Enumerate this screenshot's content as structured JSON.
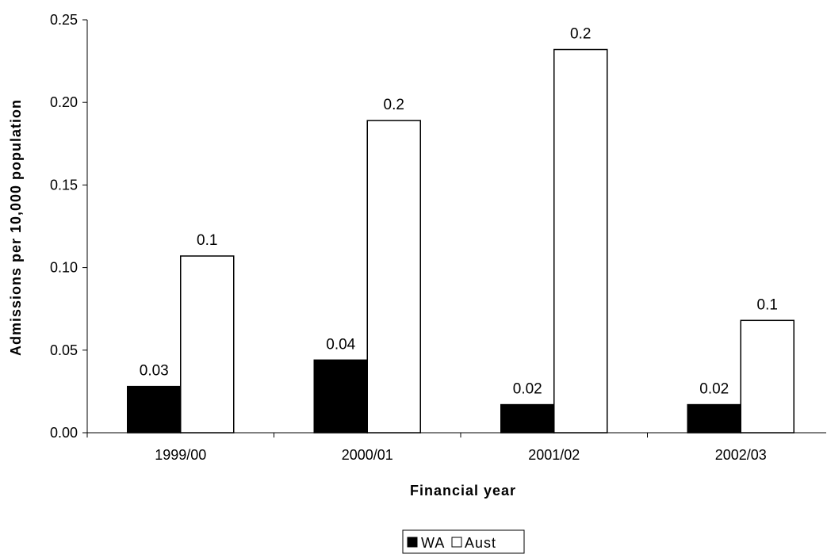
{
  "chart_data": {
    "type": "bar",
    "categories": [
      "1999/00",
      "2000/01",
      "2001/02",
      "2002/03"
    ],
    "series": [
      {
        "name": "WA",
        "color": "#000000",
        "values": [
          0.028,
          0.044,
          0.017,
          0.017
        ],
        "data_labels": [
          "0.03",
          "0.04",
          "0.02",
          "0.02"
        ]
      },
      {
        "name": "Aust",
        "color": "#ffffff",
        "values": [
          0.107,
          0.189,
          0.232,
          0.068
        ],
        "data_labels": [
          "0.1",
          "0.2",
          "0.2",
          "0.1"
        ]
      }
    ],
    "title": "",
    "xlabel": "Financial year",
    "ylabel": "Admissions per 10,000 population",
    "ylim": [
      0,
      0.25
    ],
    "yticks": [
      0,
      0.05,
      0.1,
      0.15,
      0.2,
      0.25
    ],
    "ytick_labels": [
      "0.00",
      "0.05",
      "0.10",
      "0.15",
      "0.20",
      "0.25"
    ],
    "grid": false,
    "legend_position": "bottom-center"
  }
}
